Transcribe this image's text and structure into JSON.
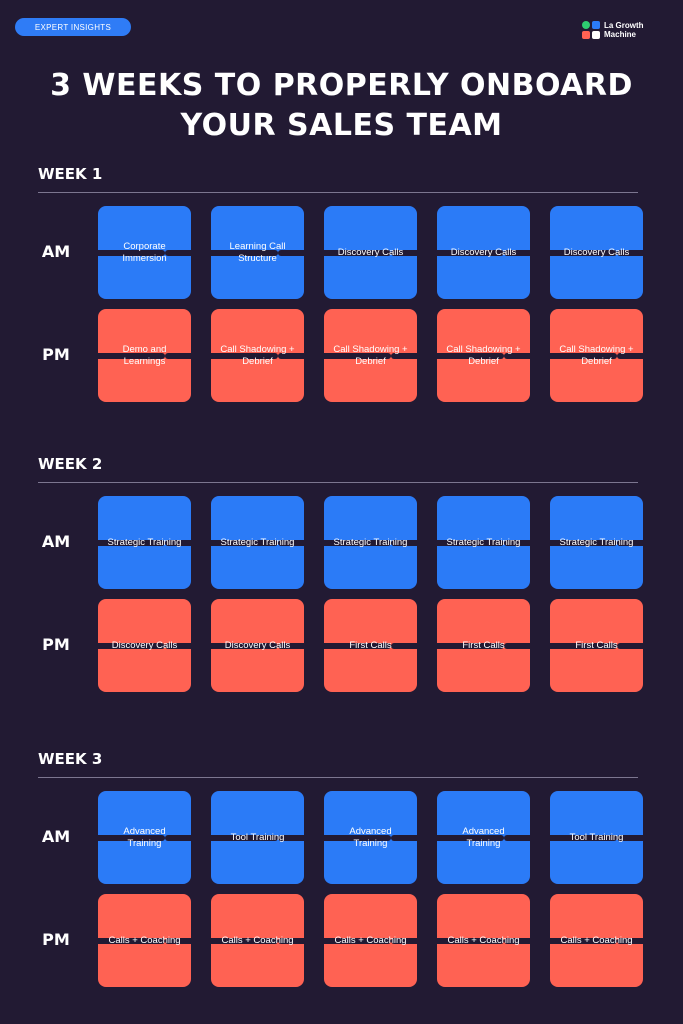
{
  "badge": "EXPERT INSIGHTS",
  "logo": {
    "line1": "La Growth",
    "line2": "Machine",
    "colors": [
      "#2ecc71",
      "#2b7bf7",
      "#ff6253",
      "#ffffff"
    ]
  },
  "headline": {
    "line1": "3 WEEKS TO PROPERLY ONBOARD",
    "line2": "YOUR SALES TEAM"
  },
  "row_labels": {
    "am": "AM",
    "pm": "PM"
  },
  "colors": {
    "background": "#221a33",
    "am": "#2b7bf7",
    "pm": "#ff6253",
    "badge": "#2f7cf6"
  },
  "weeks": [
    {
      "title": "WEEK 1",
      "am": [
        "Corporate Immersion",
        "Learning Call Structure",
        "Discovery Calls",
        "Discovery Calls",
        "Discovery Calls"
      ],
      "pm": [
        "Demo and Learnings",
        "Call Shadowing + Debrief",
        "Call Shadowing + Debrief",
        "Call Shadowing + Debrief",
        "Call Shadowing + Debrief"
      ]
    },
    {
      "title": "WEEK 2",
      "am": [
        "Strategic Training",
        "Strategic Training",
        "Strategic Training",
        "Strategic Training",
        "Strategic Training"
      ],
      "pm": [
        "Discovery Calls",
        "Discovery Calls",
        "First Calls",
        "First Calls",
        "First Calls"
      ]
    },
    {
      "title": "WEEK 3",
      "am": [
        "Advanced Training",
        "Tool Training",
        "Advanced Training",
        "Advanced Training",
        "Tool Training"
      ],
      "pm": [
        "Calls + Coaching",
        "Calls + Coaching",
        "Calls + Coaching",
        "Calls + Coaching",
        "Calls + Coaching"
      ]
    }
  ]
}
